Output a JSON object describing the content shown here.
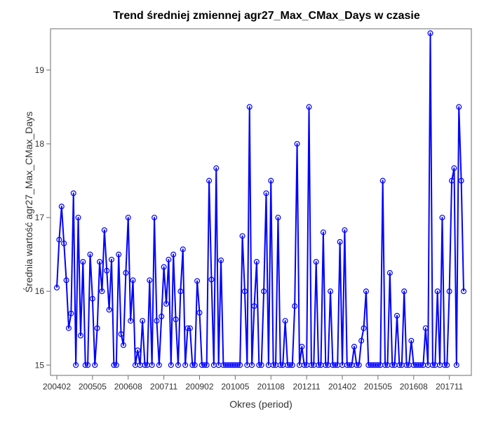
{
  "chart_data": {
    "type": "line",
    "title": "Trend średniej zmiennej agr27_Max_CMax_Days w czasie",
    "xlabel": "Okres (period)",
    "ylabel": "Średnia wartość agr27_Max_CMax_Days",
    "ylim": [
      14.86,
      19.56
    ],
    "yticks": [
      15,
      16,
      17,
      18,
      19
    ],
    "xticks": [
      {
        "index": 0,
        "label": "200402"
      },
      {
        "index": 15,
        "label": "200505"
      },
      {
        "index": 30,
        "label": "200608"
      },
      {
        "index": 45,
        "label": "200711"
      },
      {
        "index": 60,
        "label": "200902"
      },
      {
        "index": 75,
        "label": "201005"
      },
      {
        "index": 90,
        "label": "201108"
      },
      {
        "index": 105,
        "label": "201211"
      },
      {
        "index": 120,
        "label": "201402"
      },
      {
        "index": 135,
        "label": "201505"
      },
      {
        "index": 150,
        "label": "201608"
      },
      {
        "index": 165,
        "label": "201711"
      }
    ],
    "grid": false,
    "legend": "none",
    "series": [
      {
        "color": "#0000ff",
        "values": [
          16.05,
          16.7,
          17.15,
          16.65,
          16.15,
          15.5,
          15.7,
          17.33,
          15.0,
          17.0,
          15.4,
          16.4,
          15.0,
          15.0,
          16.5,
          15.9,
          15.0,
          15.5,
          16.4,
          16.0,
          16.83,
          16.28,
          15.75,
          16.43,
          15.0,
          15.0,
          16.5,
          15.42,
          15.27,
          16.25,
          17.0,
          15.6,
          16.15,
          15.0,
          15.2,
          15.0,
          15.6,
          15.0,
          15.0,
          16.15,
          15.0,
          17.0,
          15.6,
          15.0,
          15.66,
          16.33,
          15.83,
          16.43,
          15.0,
          16.5,
          15.62,
          15.0,
          16.0,
          16.57,
          15.0,
          15.5,
          15.5,
          15.0,
          15.0,
          16.14,
          15.71,
          15.0,
          15.0,
          15.0,
          17.5,
          16.16,
          15.0,
          17.67,
          15.0,
          16.42,
          15.0,
          15.0,
          15.0,
          15.0,
          15.0,
          15.0,
          15.0,
          15.0,
          16.75,
          16.0,
          15.0,
          18.5,
          15.0,
          15.8,
          16.4,
          15.0,
          15.0,
          16.0,
          17.33,
          15.0,
          17.5,
          15.0,
          15.0,
          17.0,
          15.0,
          15.0,
          15.6,
          15.0,
          15.0,
          15.0,
          15.8,
          18.0,
          15.0,
          15.25,
          15.0,
          15.0,
          18.5,
          15.0,
          15.0,
          16.4,
          15.0,
          15.0,
          16.8,
          15.0,
          15.0,
          16.0,
          15.0,
          15.0,
          15.0,
          16.67,
          15.0,
          16.83,
          15.0,
          15.0,
          15.0,
          15.25,
          15.0,
          15.0,
          15.33,
          15.5,
          16.0,
          15.0,
          15.0,
          15.0,
          15.0,
          15.0,
          15.0,
          17.5,
          15.0,
          15.0,
          16.25,
          15.0,
          15.0,
          15.67,
          15.0,
          15.0,
          16.0,
          15.0,
          15.0,
          15.33,
          15.0,
          15.0,
          15.0,
          15.0,
          15.0,
          15.5,
          15.0,
          19.5,
          15.0,
          15.0,
          16.0,
          15.0,
          17.0,
          15.0,
          15.0,
          16.0,
          17.5,
          17.67,
          15.0,
          18.5,
          17.5,
          16.0
        ]
      }
    ]
  }
}
